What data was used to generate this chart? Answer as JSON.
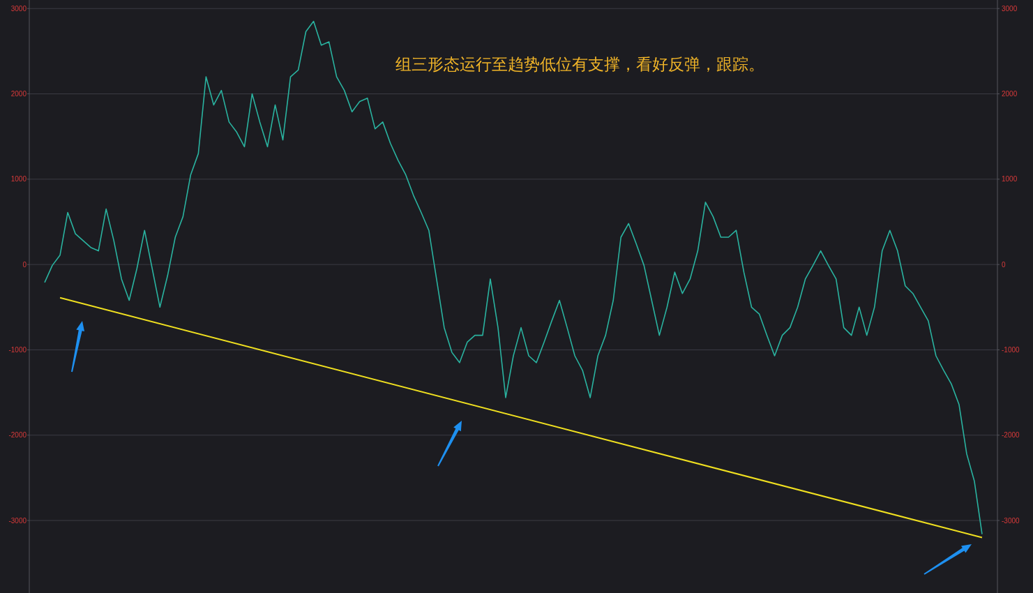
{
  "chart_data": {
    "type": "line",
    "annotations": [
      "组三形态运行至趋势低位有支撑，看好反弹，跟踪。"
    ],
    "categories": [
      null,
      null,
      null,
      null,
      null,
      null,
      null,
      null,
      null,
      null,
      null,
      null,
      null,
      null,
      null,
      null,
      null,
      null,
      null,
      null,
      null,
      null,
      null,
      null,
      null,
      null,
      null,
      null,
      null,
      null,
      null,
      null,
      null,
      null,
      null,
      null,
      null,
      null,
      null,
      null,
      null,
      null,
      null,
      null,
      null,
      null,
      null,
      null,
      null,
      null,
      null,
      null,
      null,
      null,
      null,
      null,
      null,
      null,
      null,
      null,
      null,
      null,
      null,
      null,
      null,
      null,
      null,
      null,
      null,
      null,
      null,
      null,
      null,
      null,
      null,
      null,
      null,
      null,
      null,
      null,
      null,
      null,
      null,
      null,
      null,
      null,
      null,
      null,
      null,
      null,
      null,
      null,
      null,
      null,
      null,
      null,
      null,
      null,
      null,
      null,
      null,
      null,
      null,
      null,
      null,
      null,
      null,
      null,
      null,
      null,
      null,
      null,
      null,
      null,
      null,
      null,
      null,
      null,
      null,
      null,
      null,
      null,
      null
    ],
    "ylim": [
      -3850,
      3100
    ],
    "yticks": [
      3000,
      2000,
      1000,
      0,
      -1000,
      -2000,
      -3000
    ],
    "y2lim": [
      -3850,
      3100
    ],
    "y2ticks": [
      3000,
      2000,
      1000,
      0,
      -1000,
      -2000,
      -3000
    ],
    "tick_labels": "y",
    "grid": "y",
    "marker": "none",
    "line_style": "solid",
    "series": [
      {
        "color": "#2ab3a0",
        "values": [
          -210,
          -10,
          110,
          610,
          360,
          280,
          200,
          160,
          650,
          280,
          -170,
          -420,
          -50,
          400,
          -50,
          -500,
          -130,
          320,
          560,
          1050,
          1300,
          2200,
          1870,
          2040,
          1670,
          1550,
          1380,
          2000,
          1670,
          1380,
          1870,
          1460,
          2200,
          2280,
          2730,
          2850,
          2570,
          2610,
          2200,
          2040,
          1790,
          1910,
          1950,
          1590,
          1670,
          1420,
          1220,
          1050,
          810,
          610,
          400,
          -170,
          -740,
          -1030,
          -1150,
          -910,
          -830,
          -830,
          -170,
          -740,
          -1560,
          -1070,
          -740,
          -1070,
          -1150,
          -910,
          -660,
          -420,
          -740,
          -1070,
          -1240,
          -1560,
          -1070,
          -830,
          -420,
          320,
          480,
          240,
          -10,
          -420,
          -830,
          -500,
          -90,
          -340,
          -170,
          160,
          730,
          560,
          320,
          320,
          400,
          -90,
          -500,
          -580,
          -830,
          -1070,
          -830,
          -740,
          -500,
          -170,
          -10,
          160,
          -10,
          -170,
          -740,
          -830,
          -500,
          -830,
          -500,
          160,
          400,
          160,
          -250,
          -340,
          -500,
          -660,
          -1070,
          -1240,
          -1400,
          -1640,
          -2220,
          -2540,
          -3160
        ]
      },
      {
        "color": "#f0e020",
        "values": [
          null,
          null,
          -390,
          null,
          null,
          null,
          null,
          null,
          null,
          null,
          null,
          null,
          null,
          null,
          null,
          null,
          null,
          null,
          null,
          null,
          null,
          null,
          null,
          null,
          null,
          null,
          null,
          null,
          null,
          null,
          null,
          null,
          null,
          null,
          null,
          null,
          null,
          null,
          null,
          null,
          null,
          null,
          null,
          null,
          null,
          null,
          null,
          null,
          null,
          null,
          null,
          null,
          null,
          null,
          null,
          null,
          null,
          null,
          null,
          null,
          null,
          null,
          null,
          null,
          null,
          null,
          null,
          null,
          null,
          null,
          null,
          null,
          null,
          null,
          null,
          null,
          null,
          null,
          null,
          null,
          null,
          null,
          null,
          null,
          null,
          null,
          null,
          null,
          null,
          null,
          null,
          null,
          null,
          null,
          null,
          null,
          null,
          null,
          null,
          null,
          null,
          null,
          null,
          null,
          null,
          null,
          null,
          null,
          null,
          null,
          null,
          null,
          null,
          null,
          null,
          null,
          null,
          null,
          null,
          null,
          null,
          null,
          -3200
        ]
      }
    ]
  }
}
